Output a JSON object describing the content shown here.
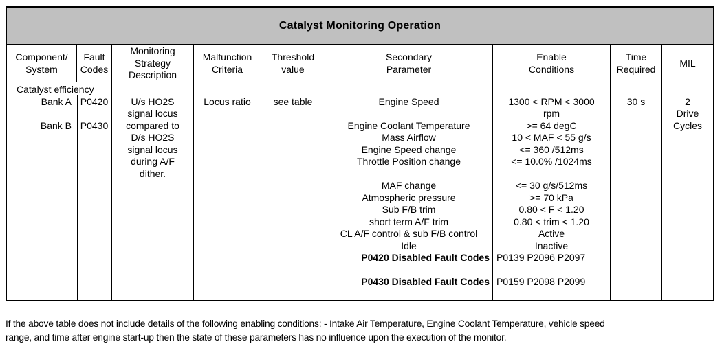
{
  "colors": {
    "title_bg": "#c0c0c0",
    "border": "#000000",
    "text": "#000000",
    "page_bg": "#ffffff"
  },
  "table": {
    "title": "Catalyst Monitoring Operation",
    "columns": [
      {
        "id": "component-system",
        "label": "Component/\nSystem"
      },
      {
        "id": "fault-codes",
        "label": "Fault\nCodes"
      },
      {
        "id": "monitoring-strategy-description",
        "label": "Monitoring\nStrategy\nDescription"
      },
      {
        "id": "malfunction-criteria",
        "label": "Malfunction\nCriteria"
      },
      {
        "id": "threshold-value",
        "label": "Threshold\nvalue"
      },
      {
        "id": "secondary-parameter",
        "label": "Secondary\nParameter"
      },
      {
        "id": "enable-conditions",
        "label": "Enable\nConditions"
      },
      {
        "id": "time-required",
        "label": "Time\nRequired"
      },
      {
        "id": "mil",
        "label": "MIL"
      }
    ],
    "body_cells": [
      {
        "id": "component-system",
        "align": "right",
        "lines": [
          {
            "text": "Catalyst efficiency",
            "style": "span-left"
          },
          {
            "text": "Bank A"
          },
          {
            "text": ""
          },
          {
            "text": "Bank B"
          }
        ]
      },
      {
        "id": "fault-codes",
        "align": "center",
        "lines": [
          {
            "text": ""
          },
          {
            "text": "P0420"
          },
          {
            "text": ""
          },
          {
            "text": "P0430"
          }
        ]
      },
      {
        "id": "monitoring-strategy-description",
        "align": "center",
        "lines": [
          {
            "text": ""
          },
          {
            "text": "U/s HO2S"
          },
          {
            "text": "signal locus"
          },
          {
            "text": "compared to"
          },
          {
            "text": "D/s HO2S"
          },
          {
            "text": "signal locus"
          },
          {
            "text": "during A/F"
          },
          {
            "text": "dither."
          }
        ]
      },
      {
        "id": "malfunction-criteria",
        "align": "center",
        "lines": [
          {
            "text": ""
          },
          {
            "text": "Locus ratio"
          }
        ]
      },
      {
        "id": "threshold-value",
        "align": "center",
        "lines": [
          {
            "text": ""
          },
          {
            "text": "see table"
          }
        ]
      },
      {
        "id": "secondary-parameter",
        "align": "center",
        "lines": [
          {
            "text": ""
          },
          {
            "text": "Engine Speed"
          },
          {
            "text": ""
          },
          {
            "text": "Engine Coolant Temperature"
          },
          {
            "text": "Mass Airflow"
          },
          {
            "text": "Engine Speed change"
          },
          {
            "text": "Throttle Position change"
          },
          {
            "text": ""
          },
          {
            "text": "MAF change"
          },
          {
            "text": "Atmospheric pressure"
          },
          {
            "text": "Sub F/B trim"
          },
          {
            "text": "short term A/F trim"
          },
          {
            "text": "CL A/F control & sub F/B control"
          },
          {
            "text": "Idle"
          },
          {
            "text": "P0420 Disabled Fault Codes",
            "style": "bold-right"
          },
          {
            "text": ""
          },
          {
            "text": "P0430 Disabled Fault Codes",
            "style": "bold-right"
          }
        ]
      },
      {
        "id": "enable-conditions",
        "align": "center",
        "lines": [
          {
            "text": ""
          },
          {
            "text": "1300 < RPM < 3000"
          },
          {
            "text": "rpm"
          },
          {
            "text": ">= 64 degC"
          },
          {
            "text": "10 < MAF < 55 g/s"
          },
          {
            "text": "<= 360 /512ms"
          },
          {
            "text": "<= 10.0% /1024ms"
          },
          {
            "text": ""
          },
          {
            "text": "<= 30 g/s/512ms"
          },
          {
            "text": ">= 70 kPa"
          },
          {
            "text": "0.80 < F < 1.20"
          },
          {
            "text": "0.80 < trim < 1.20"
          },
          {
            "text": "Active"
          },
          {
            "text": "Inactive"
          },
          {
            "text": "P0139 P2096 P2097",
            "style": "left"
          },
          {
            "text": ""
          },
          {
            "text": "P0159 P2098 P2099",
            "style": "left"
          }
        ]
      },
      {
        "id": "time-required",
        "align": "center",
        "lines": [
          {
            "text": ""
          },
          {
            "text": "30 s"
          }
        ]
      },
      {
        "id": "mil",
        "align": "center",
        "lines": [
          {
            "text": ""
          },
          {
            "text": "2"
          },
          {
            "text": "Drive"
          },
          {
            "text": "Cycles"
          }
        ]
      }
    ]
  },
  "footnote": {
    "lines": [
      "If the above table does not include details of the following enabling conditions: - Intake Air Temperature, Engine Coolant Temperature, vehicle speed",
      "range, and time after engine start-up then the state of these parameters has no influence upon the execution of the monitor."
    ]
  }
}
